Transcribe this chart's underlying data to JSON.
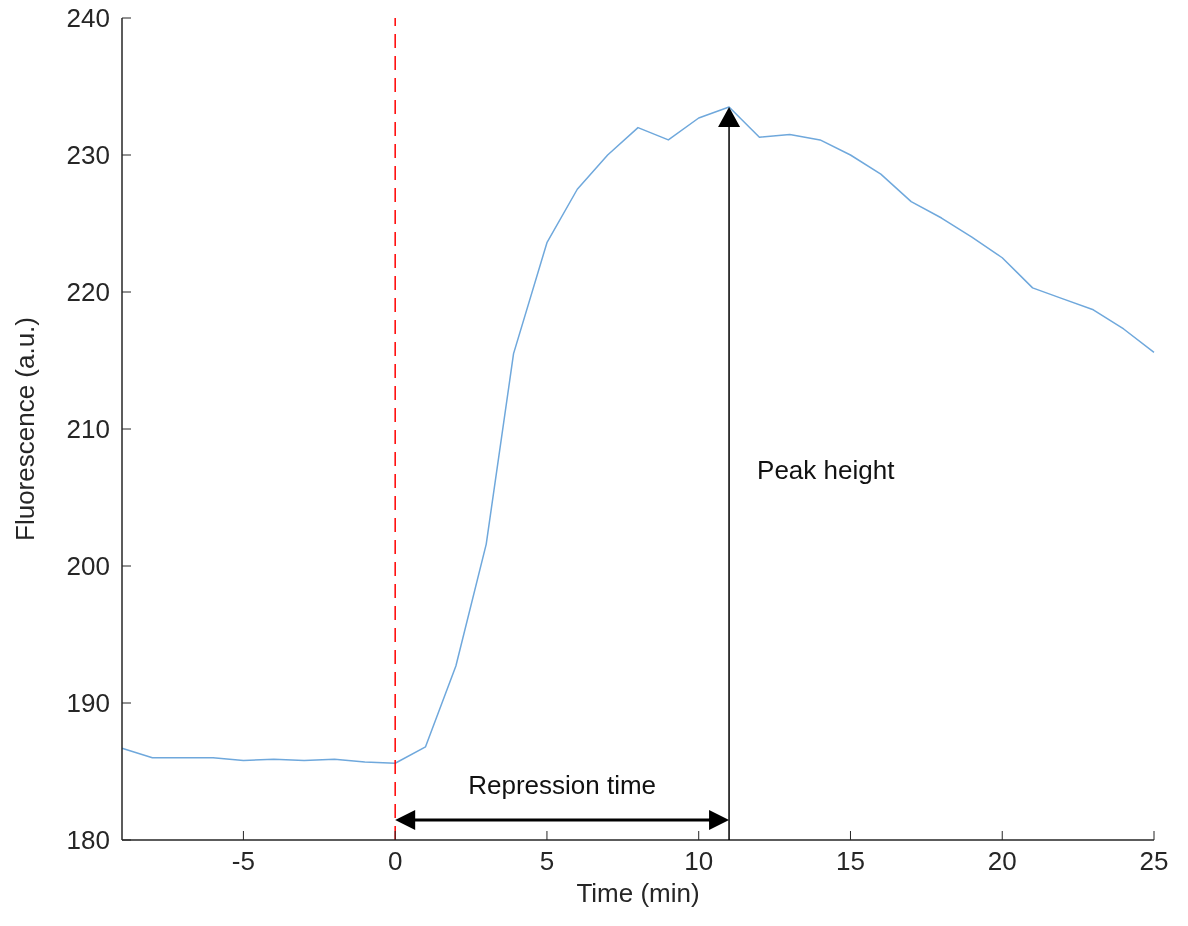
{
  "chart_data": {
    "type": "line",
    "xlabel": "Time (min)",
    "ylabel": "Fluorescence (a.u.)",
    "xlim": [
      -9,
      25
    ],
    "xticks": [
      -5,
      0,
      5,
      10,
      15,
      20,
      25
    ],
    "ylim": [
      180,
      240
    ],
    "yticks": [
      180,
      190,
      200,
      210,
      220,
      230,
      240
    ],
    "grid": false,
    "line_style": "solid",
    "series": [
      {
        "color": "#6fa8dc",
        "x": [
          -9,
          -8,
          -7,
          -6,
          -5,
          -4,
          -3,
          -2,
          -1,
          0,
          1,
          2,
          3,
          3.9,
          5,
          6,
          7,
          8,
          9,
          10,
          11,
          12,
          13,
          14,
          15,
          16,
          17,
          18,
          19,
          20,
          21,
          22,
          23,
          24,
          25
        ],
        "values": [
          186.7,
          186.0,
          186.0,
          186.0,
          185.8,
          185.9,
          185.8,
          185.9,
          185.7,
          185.6,
          186.8,
          192.7,
          201.6,
          215.5,
          223.6,
          227.5,
          230.0,
          232.0,
          231.1,
          232.7,
          233.5,
          231.3,
          231.5,
          231.1,
          230.0,
          228.6,
          226.6,
          225.4,
          224.0,
          222.5,
          220.3,
          219.5,
          218.7,
          217.3,
          215.6
        ]
      }
    ],
    "ref_lines": [
      {
        "axis": "x",
        "value": 0,
        "color": "#ff0000",
        "line_style": "dashed"
      }
    ],
    "annotations": [
      "Repression time",
      "Peak height"
    ]
  }
}
